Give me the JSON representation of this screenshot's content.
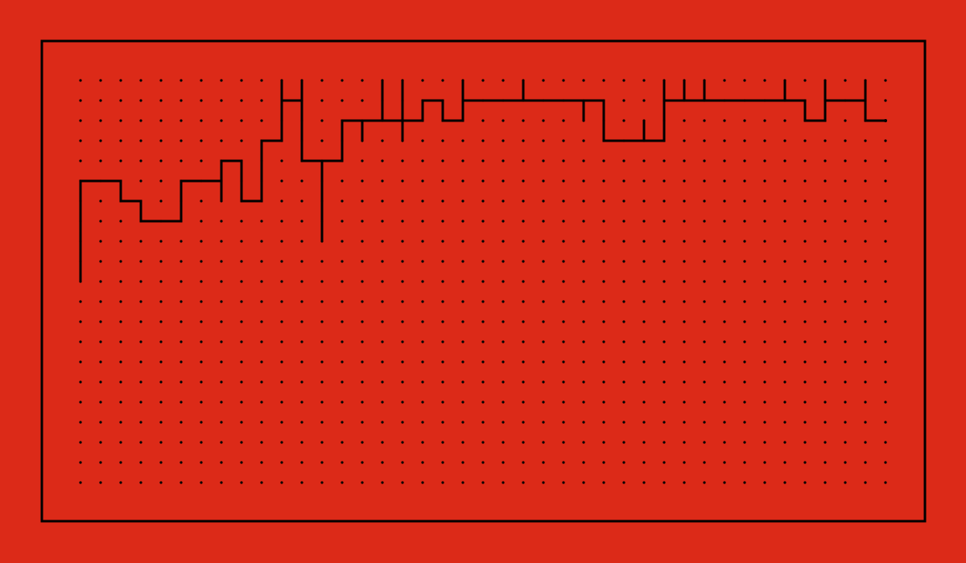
{
  "colors": {
    "background": "#dc2a18",
    "ink": "#000000"
  },
  "board": {
    "columns": 41,
    "rows": 21,
    "cursor": [
      41,
      3
    ],
    "wall_paths": [
      [
        [
          1,
          11
        ],
        [
          1,
          6
        ],
        [
          3,
          6
        ],
        [
          3,
          7
        ],
        [
          4,
          7
        ],
        [
          4,
          8
        ],
        [
          6,
          8
        ],
        [
          6,
          6
        ],
        [
          8,
          6
        ],
        [
          8,
          5
        ],
        [
          9,
          5
        ],
        [
          9,
          7
        ],
        [
          10,
          7
        ],
        [
          10,
          4
        ],
        [
          11,
          4
        ],
        [
          11,
          1
        ]
      ],
      [
        [
          11,
          2
        ],
        [
          12,
          2
        ]
      ],
      [
        [
          12,
          1
        ],
        [
          12,
          5
        ],
        [
          14,
          5
        ],
        [
          14,
          3
        ],
        [
          18,
          3
        ],
        [
          18,
          2
        ],
        [
          19,
          2
        ],
        [
          19,
          3
        ],
        [
          20,
          3
        ],
        [
          20,
          2
        ],
        [
          27,
          2
        ],
        [
          27,
          4
        ],
        [
          30,
          4
        ],
        [
          30,
          1
        ]
      ],
      [
        [
          30,
          2
        ],
        [
          37,
          2
        ],
        [
          37,
          3
        ],
        [
          38,
          3
        ],
        [
          38,
          2
        ],
        [
          40,
          2
        ],
        [
          40,
          3
        ],
        [
          41,
          3
        ]
      ],
      [
        [
          8,
          6
        ],
        [
          8,
          7
        ]
      ],
      [
        [
          13,
          5
        ],
        [
          13,
          9
        ]
      ],
      [
        [
          15,
          3
        ],
        [
          15,
          4
        ]
      ],
      [
        [
          16,
          1
        ],
        [
          16,
          3
        ]
      ],
      [
        [
          17,
          1
        ],
        [
          17,
          4
        ]
      ],
      [
        [
          20,
          1
        ],
        [
          20,
          2
        ]
      ],
      [
        [
          23,
          1
        ],
        [
          23,
          2
        ]
      ],
      [
        [
          26,
          2
        ],
        [
          26,
          3
        ]
      ],
      [
        [
          29,
          3
        ],
        [
          29,
          4
        ]
      ],
      [
        [
          31,
          1
        ],
        [
          31,
          2
        ]
      ],
      [
        [
          32,
          1
        ],
        [
          32,
          2
        ]
      ],
      [
        [
          36,
          1
        ],
        [
          36,
          2
        ]
      ],
      [
        [
          38,
          1
        ],
        [
          38,
          2
        ]
      ],
      [
        [
          40,
          1
        ],
        [
          40,
          2
        ]
      ]
    ]
  }
}
